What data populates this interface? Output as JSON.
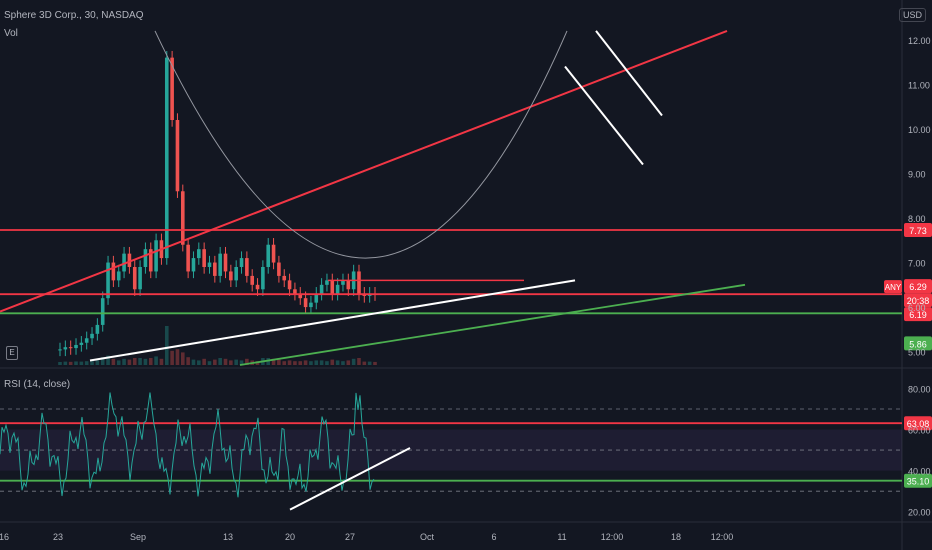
{
  "header": {
    "title": "Sphere 3D Corp., 30, NASDAQ",
    "vol_label": "Vol",
    "currency": "USD",
    "e_marker": "E"
  },
  "rsi_header": "RSI (14, close)",
  "colors": {
    "bg": "#131722",
    "red": "#f23645",
    "green": "#4caf50",
    "white": "#ffffff",
    "rsi": "#26a69a",
    "candle_up": "#26a69a",
    "candle_down": "#ef5350"
  },
  "price_axis_ticks": [
    "12.00",
    "11.00",
    "10.00",
    "9.00",
    "8.00",
    "7.00",
    "6.00",
    "5.00"
  ],
  "rsi_axis_ticks": [
    "80.00",
    "60.00",
    "40.00",
    "20.00"
  ],
  "x_axis_ticks": [
    "16",
    "23",
    "Sep",
    "13",
    "20",
    "27",
    "Oct",
    "6",
    "11",
    "12:00",
    "18",
    "12:00"
  ],
  "price_tags": [
    {
      "label": "7.73",
      "color": "#f23645"
    },
    {
      "label": "6.29",
      "color": "#f23645"
    },
    {
      "label": "20:38",
      "color": "#f23645"
    },
    {
      "label": "6.19",
      "color": "#f23645"
    },
    {
      "label": "5.86",
      "color": "#4caf50"
    }
  ],
  "any_tag": "ANY",
  "rsi_tags": [
    {
      "label": "63.08",
      "color": "#f23645"
    },
    {
      "label": "35.10",
      "color": "#4caf50"
    }
  ],
  "chart_data": {
    "type": "line",
    "panes": [
      "price",
      "rsi"
    ],
    "price": {
      "ylim": [
        4.7,
        12.4
      ],
      "candles_close": [
        5.05,
        5.1,
        5.08,
        5.15,
        5.2,
        5.3,
        5.4,
        5.6,
        6.2,
        7.0,
        6.6,
        6.8,
        7.2,
        6.9,
        6.4,
        6.9,
        7.3,
        6.8,
        7.5,
        7.1,
        11.6,
        10.2,
        8.6,
        7.4,
        6.8,
        7.1,
        7.3,
        6.9,
        7.0,
        6.7,
        7.2,
        6.8,
        6.6,
        6.9,
        7.1,
        6.7,
        6.5,
        6.4,
        6.9,
        7.4,
        7.0,
        6.7,
        6.6,
        6.4,
        6.3,
        6.2,
        6.0,
        6.1,
        6.3,
        6.5,
        6.6,
        6.3,
        6.5,
        6.6,
        6.4,
        6.8,
        6.3,
        6.25,
        6.3,
        6.29
      ],
      "horizontal_levels": [
        {
          "price": 7.73,
          "color": "#f23645"
        },
        {
          "price": 6.29,
          "color": "#f23645"
        },
        {
          "price": 5.86,
          "color": "#4caf50"
        }
      ],
      "short_level": {
        "price": 6.6,
        "color": "#f23645"
      },
      "red_channel": [
        [
          0,
          5.9
        ],
        [
          727,
          12.2
        ]
      ],
      "white_trend": [
        [
          90,
          4.8
        ],
        [
          575,
          6.6
        ]
      ],
      "green_trend": [
        [
          240,
          4.7
        ],
        [
          745,
          6.5
        ]
      ],
      "white_down_1": [
        [
          565,
          11.4
        ],
        [
          643,
          9.2
        ]
      ],
      "white_down_2": [
        [
          596,
          12.2
        ],
        [
          662,
          10.3
        ]
      ]
    },
    "rsi": {
      "ylim": [
        15,
        88
      ],
      "levels": [
        {
          "value": 63.08,
          "color": "#f23645"
        },
        {
          "value": 35.1,
          "color": "#4caf50"
        }
      ],
      "band": [
        40,
        60
      ],
      "white_trend": [
        [
          290,
          21
        ],
        [
          410,
          51
        ]
      ]
    }
  }
}
